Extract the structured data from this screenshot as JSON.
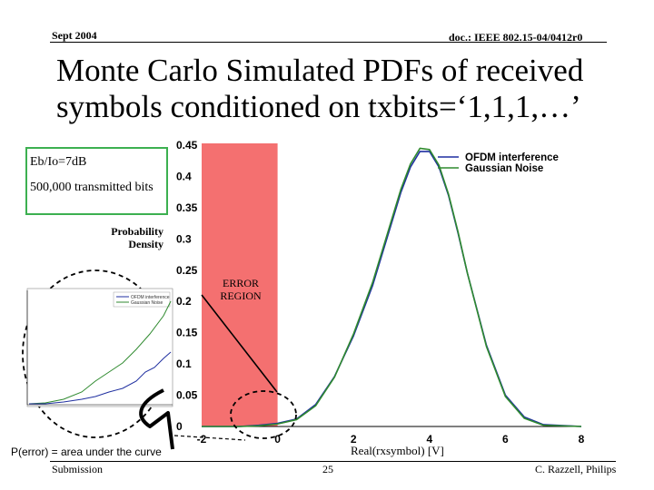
{
  "header": {
    "date": "Sept 2004",
    "doc_id": "doc.: IEEE 802.15-04/0412r0"
  },
  "title": "Monte Carlo Simulated PDFs of received symbols conditioned on txbits=‘1,1,1,…’",
  "infobox": {
    "line1": "Eb/Io=7dB",
    "line2": "500,000 transmitted bits"
  },
  "ylabel": "Probability Density",
  "error_region_label": "ERROR REGION",
  "xlabel": "Real(rxsymbol) [V]",
  "perror_caption": "P(error) = area under the curve",
  "footer": {
    "left": "Submission",
    "page": "25",
    "right": "C. Razzell, Philips"
  },
  "colors": {
    "ofdm": "#1f2fa0",
    "gaussian": "#2f8a2f",
    "error_region": "#f47070",
    "infobox_border": "#3cb050"
  },
  "chart_data": {
    "type": "line",
    "xlabel": "Real(rxsymbol) [V]",
    "ylabel": "Probability Density",
    "xlim": [
      -2,
      8
    ],
    "ylim": [
      0,
      0.45
    ],
    "x_ticks": [
      "-2",
      "0",
      "2",
      "4",
      "6",
      "8"
    ],
    "y_ticks": [
      "0",
      "0.05",
      "0.1",
      "0.15",
      "0.2",
      "0.25",
      "0.3",
      "0.35",
      "0.4",
      "0.45"
    ],
    "legend": "top-right",
    "shaded_region": {
      "label": "ERROR REGION",
      "x_range": [
        -2,
        0
      ]
    },
    "series": [
      {
        "name": "OFDM interference",
        "x": [
          -2,
          -1.5,
          -1,
          -0.5,
          0,
          0.5,
          1,
          1.5,
          2,
          2.5,
          3,
          3.25,
          3.5,
          3.75,
          4,
          4.25,
          4.5,
          4.75,
          5,
          5.5,
          6,
          6.5,
          7,
          8
        ],
        "y": [
          0.0,
          0.0,
          0.0,
          0.002,
          0.005,
          0.012,
          0.035,
          0.08,
          0.145,
          0.225,
          0.325,
          0.375,
          0.415,
          0.44,
          0.44,
          0.415,
          0.37,
          0.31,
          0.245,
          0.13,
          0.05,
          0.015,
          0.003,
          0.0
        ]
      },
      {
        "name": "Gaussian Noise",
        "x": [
          -2,
          -1.5,
          -1,
          -0.5,
          0,
          0.5,
          1,
          1.5,
          2,
          2.5,
          3,
          3.25,
          3.5,
          3.75,
          4,
          4.25,
          4.5,
          4.75,
          5,
          5.5,
          6,
          6.5,
          7,
          8
        ],
        "y": [
          0.0,
          0.0,
          0.0,
          0.001,
          0.004,
          0.011,
          0.033,
          0.079,
          0.148,
          0.23,
          0.33,
          0.38,
          0.42,
          0.445,
          0.443,
          0.418,
          0.372,
          0.312,
          0.245,
          0.128,
          0.048,
          0.013,
          0.002,
          0.0
        ]
      }
    ]
  }
}
